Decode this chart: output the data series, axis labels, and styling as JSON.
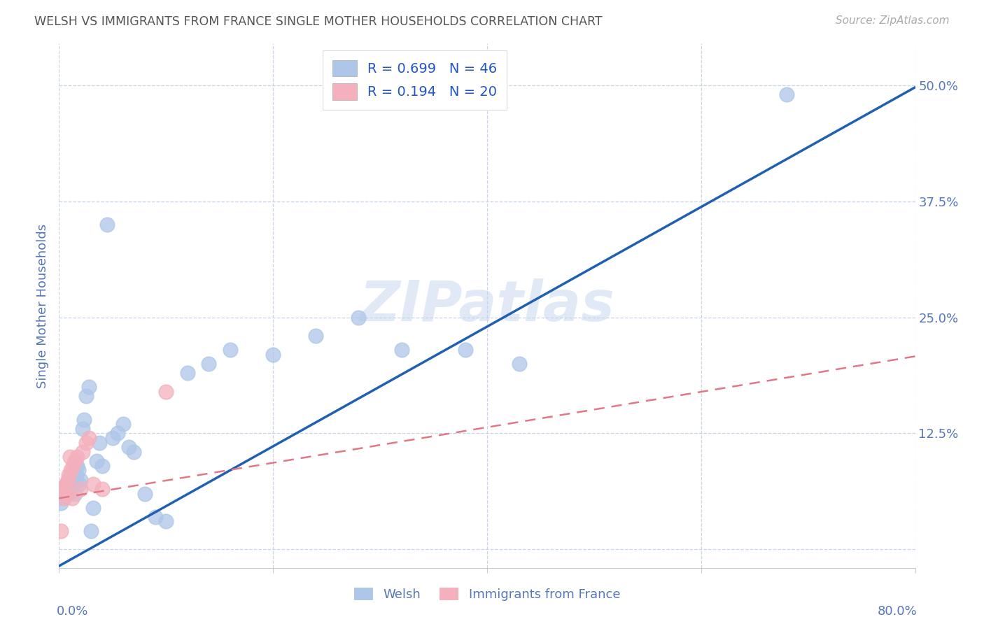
{
  "title": "WELSH VS IMMIGRANTS FROM FRANCE SINGLE MOTHER HOUSEHOLDS CORRELATION CHART",
  "source": "Source: ZipAtlas.com",
  "ylabel": "Single Mother Households",
  "yticks": [
    0.0,
    0.125,
    0.25,
    0.375,
    0.5
  ],
  "ytick_labels": [
    "",
    "12.5%",
    "25.0%",
    "37.5%",
    "50.0%"
  ],
  "xlim": [
    0.0,
    0.8
  ],
  "ylim": [
    -0.02,
    0.545
  ],
  "welsh_R": 0.699,
  "welsh_N": 46,
  "france_R": 0.194,
  "france_N": 20,
  "welsh_color": "#aec6e8",
  "welsh_line_color": "#2060b0",
  "france_color": "#f4b0bc",
  "france_line_color": "#e07888",
  "background_color": "#ffffff",
  "grid_color": "#c8d4e8",
  "title_color": "#555555",
  "axis_color": "#5577bb",
  "legend_R_color": "#2255cc",
  "watermark": "ZIPatlas",
  "welsh_line_x": [
    0.0,
    0.8
  ],
  "welsh_line_y": [
    -0.018,
    0.498
  ],
  "france_line_x": [
    0.0,
    0.8
  ],
  "france_line_y": [
    0.055,
    0.208
  ],
  "welsh_x": [
    0.002,
    0.004,
    0.005,
    0.006,
    0.007,
    0.008,
    0.009,
    0.01,
    0.011,
    0.012,
    0.013,
    0.014,
    0.015,
    0.016,
    0.017,
    0.018,
    0.019,
    0.02,
    0.022,
    0.023,
    0.025,
    0.028,
    0.03,
    0.032,
    0.035,
    0.038,
    0.04,
    0.045,
    0.05,
    0.055,
    0.06,
    0.065,
    0.07,
    0.08,
    0.09,
    0.1,
    0.12,
    0.14,
    0.16,
    0.2,
    0.24,
    0.28,
    0.32,
    0.38,
    0.43,
    0.68
  ],
  "welsh_y": [
    0.05,
    0.055,
    0.06,
    0.065,
    0.07,
    0.06,
    0.075,
    0.065,
    0.08,
    0.075,
    0.07,
    0.085,
    0.06,
    0.08,
    0.09,
    0.085,
    0.07,
    0.075,
    0.13,
    0.14,
    0.165,
    0.175,
    0.02,
    0.045,
    0.095,
    0.115,
    0.09,
    0.35,
    0.12,
    0.125,
    0.135,
    0.11,
    0.105,
    0.06,
    0.035,
    0.03,
    0.19,
    0.2,
    0.215,
    0.21,
    0.23,
    0.25,
    0.215,
    0.215,
    0.2,
    0.49
  ],
  "france_x": [
    0.002,
    0.004,
    0.005,
    0.006,
    0.007,
    0.008,
    0.009,
    0.01,
    0.011,
    0.012,
    0.013,
    0.015,
    0.017,
    0.02,
    0.022,
    0.025,
    0.028,
    0.032,
    0.04,
    0.1
  ],
  "france_y": [
    0.02,
    0.065,
    0.055,
    0.07,
    0.06,
    0.075,
    0.08,
    0.1,
    0.085,
    0.055,
    0.09,
    0.095,
    0.1,
    0.065,
    0.105,
    0.115,
    0.12,
    0.07,
    0.065,
    0.17
  ]
}
